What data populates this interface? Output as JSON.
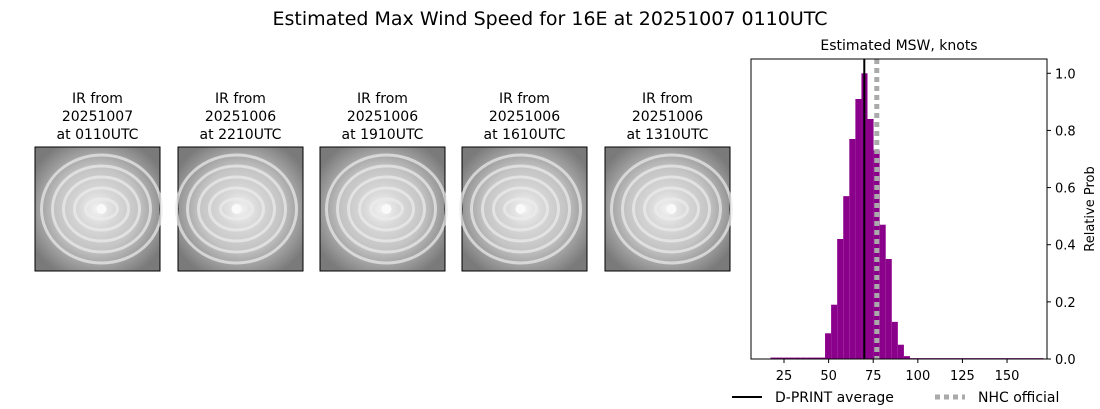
{
  "title": "Estimated Max Wind Speed for 16E at 20251007 0110UTC",
  "panels": [
    {
      "label": [
        "IR from",
        "20251007",
        "at 0110UTC"
      ]
    },
    {
      "label": [
        "IR from",
        "20251006",
        "at 2210UTC"
      ]
    },
    {
      "label": [
        "IR from",
        "20251006",
        "at 1910UTC"
      ]
    },
    {
      "label": [
        "IR from",
        "20251006",
        "at 1610UTC"
      ]
    },
    {
      "label": [
        "IR from",
        "20251006",
        "at 1310UTC"
      ]
    }
  ],
  "chart_data": {
    "type": "histogram",
    "title": "Estimated MSW, knots",
    "bins": [
      17.4,
      20.8,
      24.2,
      27.6,
      31.0,
      34.4,
      37.8,
      41.2,
      44.6,
      48.0,
      51.4,
      54.8,
      58.2,
      61.6,
      65.0,
      68.4,
      71.8,
      75.2,
      78.6,
      82.0,
      85.4,
      88.8,
      92.2,
      95.6,
      99.0,
      102.4,
      105.8,
      109.2,
      112.6,
      116.0,
      119.4,
      122.8,
      126.2,
      129.6,
      133.0,
      136.4,
      139.8,
      143.2,
      146.6,
      150.0,
      153.4,
      156.8,
      160.2,
      163.6,
      167.0,
      170.4
    ],
    "values": [
      0.005,
      0.005,
      0.005,
      0.005,
      0.005,
      0.005,
      0.005,
      0.005,
      0.005,
      0.09,
      0.19,
      0.42,
      0.57,
      0.77,
      0.91,
      1.0,
      0.84,
      0.73,
      0.47,
      0.35,
      0.13,
      0.05,
      0.01,
      0.003,
      0.003,
      0.003,
      0.003,
      0.003,
      0.003,
      0.003,
      0.003,
      0.003,
      0.003,
      0.003,
      0.003,
      0.003,
      0.003,
      0.003,
      0.003,
      0.003,
      0.003,
      0.003,
      0.003,
      0.003,
      0.003
    ],
    "color": "#8b008b",
    "xlim": [
      6.5,
      172.4
    ],
    "ylim": [
      0,
      1.05
    ],
    "xticks": [
      25,
      50,
      75,
      100,
      125,
      150
    ],
    "yticks": [
      {
        "value": 0,
        "label": "0.0"
      },
      {
        "value": 0.2,
        "label": "0.2"
      },
      {
        "value": 0.4,
        "label": "0.4"
      },
      {
        "value": 0.6,
        "label": "0.6"
      },
      {
        "value": 0.8,
        "label": "0.8"
      },
      {
        "value": 1.0,
        "label": "1.0"
      }
    ],
    "y_label": "Relative Prob",
    "lines": [
      {
        "name": "D-PRINT average",
        "x": 70,
        "color": "#000000",
        "style": "solid"
      },
      {
        "name": "NHC official",
        "x": 77,
        "color": "#aaaaaa",
        "style": "dotted"
      }
    ]
  }
}
